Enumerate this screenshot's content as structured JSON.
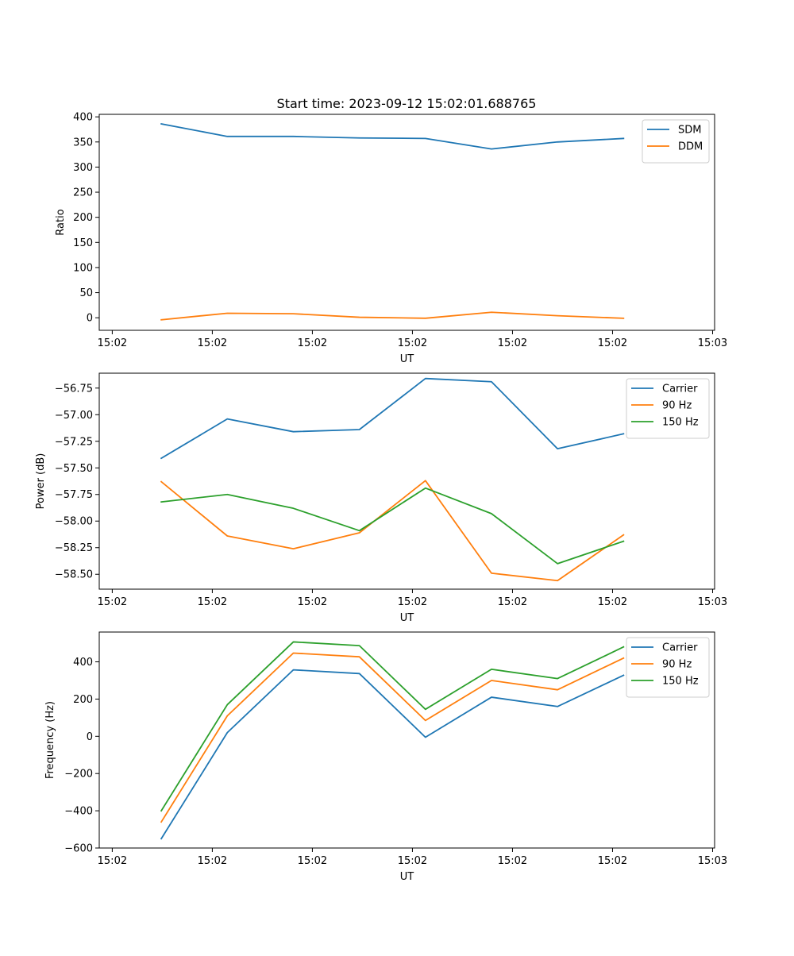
{
  "figure_title": "Start time: 2023-09-12 15:02:01.688765",
  "chart_data": [
    {
      "type": "line",
      "title": "Start time: 2023-09-12 15:02:01.688765",
      "xlabel": "UT",
      "ylabel": "Ratio",
      "x_tick_labels": [
        "15:02",
        "15:02",
        "15:02",
        "15:02",
        "15:02",
        "15:02",
        "15:03"
      ],
      "x_ticks": [
        0,
        1,
        2,
        3,
        4,
        5,
        6
      ],
      "x": [
        0.49,
        1.15,
        1.81,
        2.47,
        3.13,
        3.79,
        4.45,
        5.11
      ],
      "xlim": [
        -0.13,
        6.02
      ],
      "ylim": [
        -25,
        405
      ],
      "y_ticks": [
        0,
        50,
        100,
        150,
        200,
        250,
        300,
        350,
        400
      ],
      "legend_position": "top-right",
      "series": [
        {
          "name": "SDM",
          "color": "#1f77b4",
          "values": [
            386,
            361,
            361,
            358,
            357,
            336,
            350,
            357
          ]
        },
        {
          "name": "DDM",
          "color": "#ff7f0e",
          "values": [
            -4,
            9,
            8,
            1,
            -1,
            11,
            4,
            -1
          ]
        }
      ]
    },
    {
      "type": "line",
      "title": "",
      "xlabel": "UT",
      "ylabel": "Power (dB)",
      "x_tick_labels": [
        "15:02",
        "15:02",
        "15:02",
        "15:02",
        "15:02",
        "15:02",
        "15:03"
      ],
      "x_ticks": [
        0,
        1,
        2,
        3,
        4,
        5,
        6
      ],
      "x": [
        0.49,
        1.15,
        1.81,
        2.47,
        3.13,
        3.79,
        4.45,
        5.11
      ],
      "xlim": [
        -0.13,
        6.02
      ],
      "ylim": [
        -58.64,
        -56.61
      ],
      "y_ticks": [
        -58.5,
        -58.25,
        -58.0,
        -57.75,
        -57.5,
        -57.25,
        -57.0,
        -56.75
      ],
      "y_tick_labels": [
        "−58.50",
        "−58.25",
        "−58.00",
        "−57.75",
        "−57.50",
        "−57.25",
        "−57.00",
        "−56.75"
      ],
      "legend_position": "top-right",
      "series": [
        {
          "name": "Carrier",
          "color": "#1f77b4",
          "values": [
            -57.41,
            -57.04,
            -57.16,
            -57.14,
            -56.66,
            -56.69,
            -57.32,
            -57.18
          ]
        },
        {
          "name": "90 Hz",
          "color": "#ff7f0e",
          "values": [
            -57.63,
            -58.14,
            -58.26,
            -58.11,
            -57.62,
            -58.49,
            -58.56,
            -58.13
          ]
        },
        {
          "name": "150 Hz",
          "color": "#2ca02c",
          "values": [
            -57.82,
            -57.75,
            -57.88,
            -58.09,
            -57.69,
            -57.93,
            -58.4,
            -58.19
          ]
        }
      ]
    },
    {
      "type": "line",
      "title": "",
      "xlabel": "UT",
      "ylabel": "Frequency (Hz)",
      "x_tick_labels": [
        "15:02",
        "15:02",
        "15:02",
        "15:02",
        "15:02",
        "15:02",
        "15:03"
      ],
      "x_ticks": [
        0,
        1,
        2,
        3,
        4,
        5,
        6
      ],
      "x": [
        0.49,
        1.15,
        1.81,
        2.47,
        3.13,
        3.79,
        4.45,
        5.11
      ],
      "xlim": [
        -0.13,
        6.02
      ],
      "ylim": [
        -600,
        560
      ],
      "y_ticks": [
        -600,
        -400,
        -200,
        0,
        200,
        400
      ],
      "y_tick_labels": [
        "−600",
        "−400",
        "−200",
        "0",
        "200",
        "400"
      ],
      "legend_position": "top-right",
      "series": [
        {
          "name": "Carrier",
          "color": "#1f77b4",
          "values": [
            -550,
            20,
            357,
            337,
            -5,
            210,
            160,
            328
          ]
        },
        {
          "name": "90 Hz",
          "color": "#ff7f0e",
          "values": [
            -460,
            110,
            447,
            427,
            85,
            300,
            250,
            420
          ]
        },
        {
          "name": "150 Hz",
          "color": "#2ca02c",
          "values": [
            -400,
            170,
            507,
            487,
            145,
            360,
            310,
            480
          ]
        }
      ]
    }
  ]
}
